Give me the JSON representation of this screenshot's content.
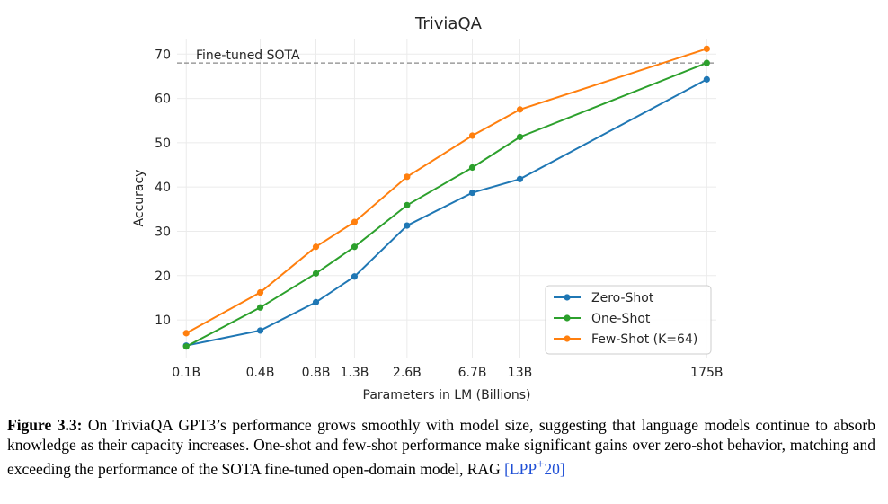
{
  "chart_data": {
    "type": "line",
    "title": "TriviaQA",
    "xlabel": "Parameters in LM (Billions)",
    "ylabel": "Accuracy",
    "categories": [
      "0.1B",
      "0.4B",
      "0.8B",
      "1.3B",
      "2.6B",
      "6.7B",
      "13B",
      "175B"
    ],
    "x": [
      0.125,
      0.35,
      0.76,
      1.3,
      2.7,
      6.7,
      13,
      175
    ],
    "x_scale": "log",
    "ylim": [
      1.5,
      73.5
    ],
    "yticks": [
      10,
      20,
      30,
      40,
      50,
      60,
      70
    ],
    "grid": true,
    "legend_position": "lower-right",
    "series": [
      {
        "name": "Zero-Shot",
        "color": "#1f77b4",
        "values": [
          4.2,
          7.6,
          14.0,
          19.8,
          31.3,
          38.7,
          41.8,
          64.3
        ]
      },
      {
        "name": "One-Shot",
        "color": "#2ca02c",
        "values": [
          4.0,
          12.8,
          20.5,
          26.5,
          35.9,
          44.4,
          51.3,
          68.0
        ]
      },
      {
        "name": "Few-Shot (K=64)",
        "color": "#ff7f0e",
        "values": [
          7.0,
          16.2,
          26.5,
          32.1,
          42.3,
          51.6,
          57.5,
          71.2
        ]
      }
    ],
    "reference_line": {
      "label": "Fine-tuned SOTA",
      "value": 68.0,
      "color": "#888888"
    }
  },
  "caption": {
    "label": "Figure 3.3:",
    "text": " On TriviaQA GPT3’s performance grows smoothly with model size, suggesting that language models continue to absorb knowledge as their capacity increases. One-shot and few-shot performance make significant gains over zero-shot behavior, matching and exceeding the performance of the SOTA fine-tuned open-domain model, RAG ",
    "cite_open": "[",
    "cite_main": "LPP",
    "cite_sup": "+",
    "cite_year": "20",
    "cite_close": "]"
  }
}
